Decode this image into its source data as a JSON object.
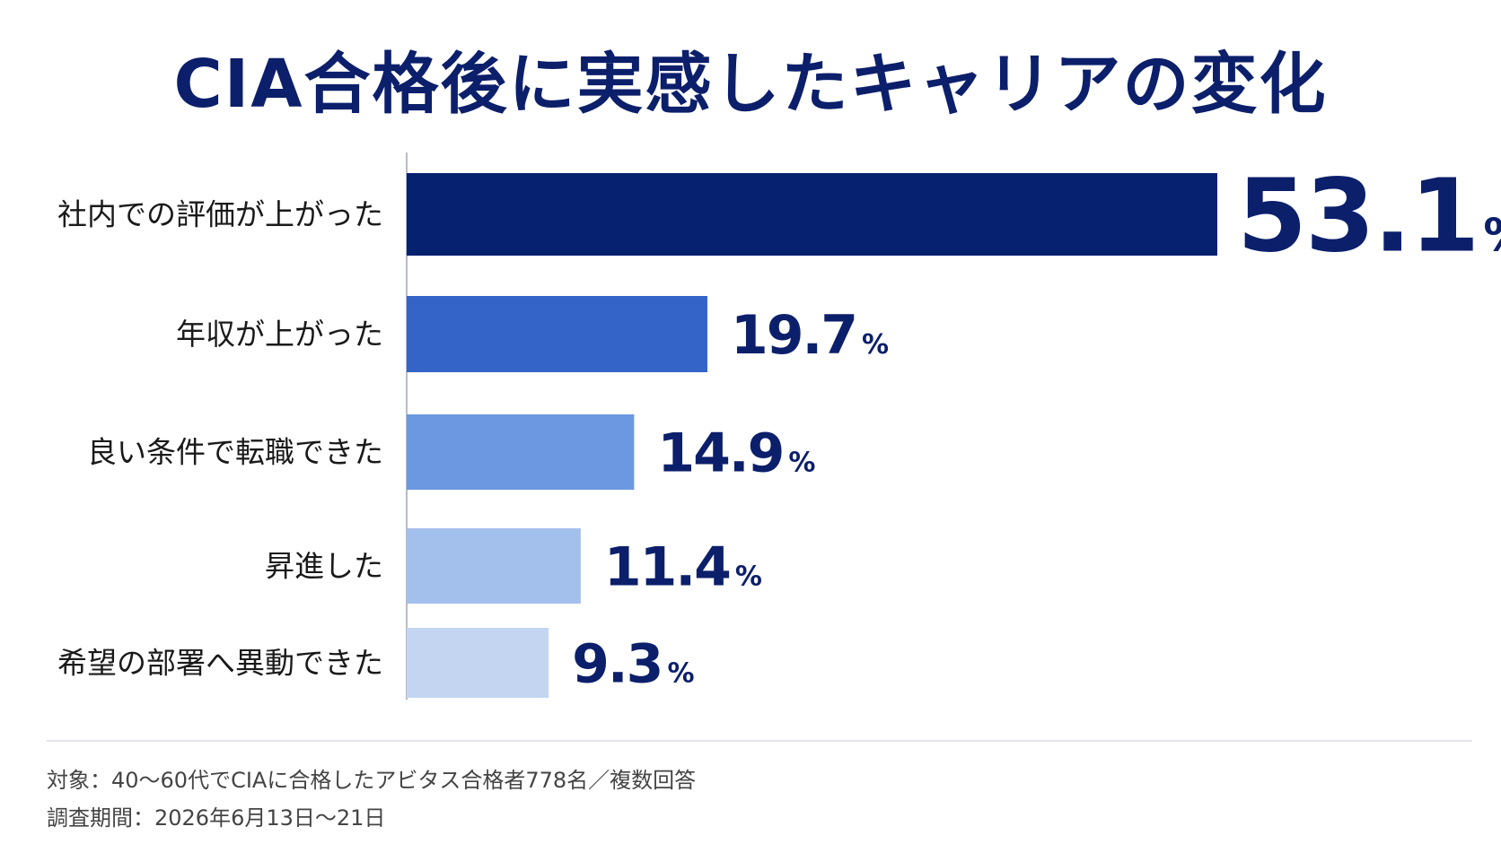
{
  "chart_data": {
    "type": "bar",
    "orientation": "horizontal",
    "title": "CIA合格後に実感したキャリアの変化",
    "categories": [
      "社内での評価が上がった",
      "年収が上がった",
      "良い条件で転職できた",
      "昇進した",
      "希望の部署へ異動できた"
    ],
    "values": [
      53.1,
      19.7,
      14.9,
      11.4,
      9.3
    ],
    "value_labels": [
      "53.1",
      "19.7",
      "14.9",
      "11.4",
      "9.3"
    ],
    "unit": "%",
    "colors": [
      "#052170",
      "#3464c8",
      "#6b98e0",
      "#a3bfec",
      "#c4d5f2"
    ],
    "grid": false,
    "legend": "none"
  },
  "notes": {
    "target": "対象：40〜60代でCIAに合格したアビタス合格者778名／複数回答",
    "period": "調査期間：2026年6月13日〜21日"
  }
}
